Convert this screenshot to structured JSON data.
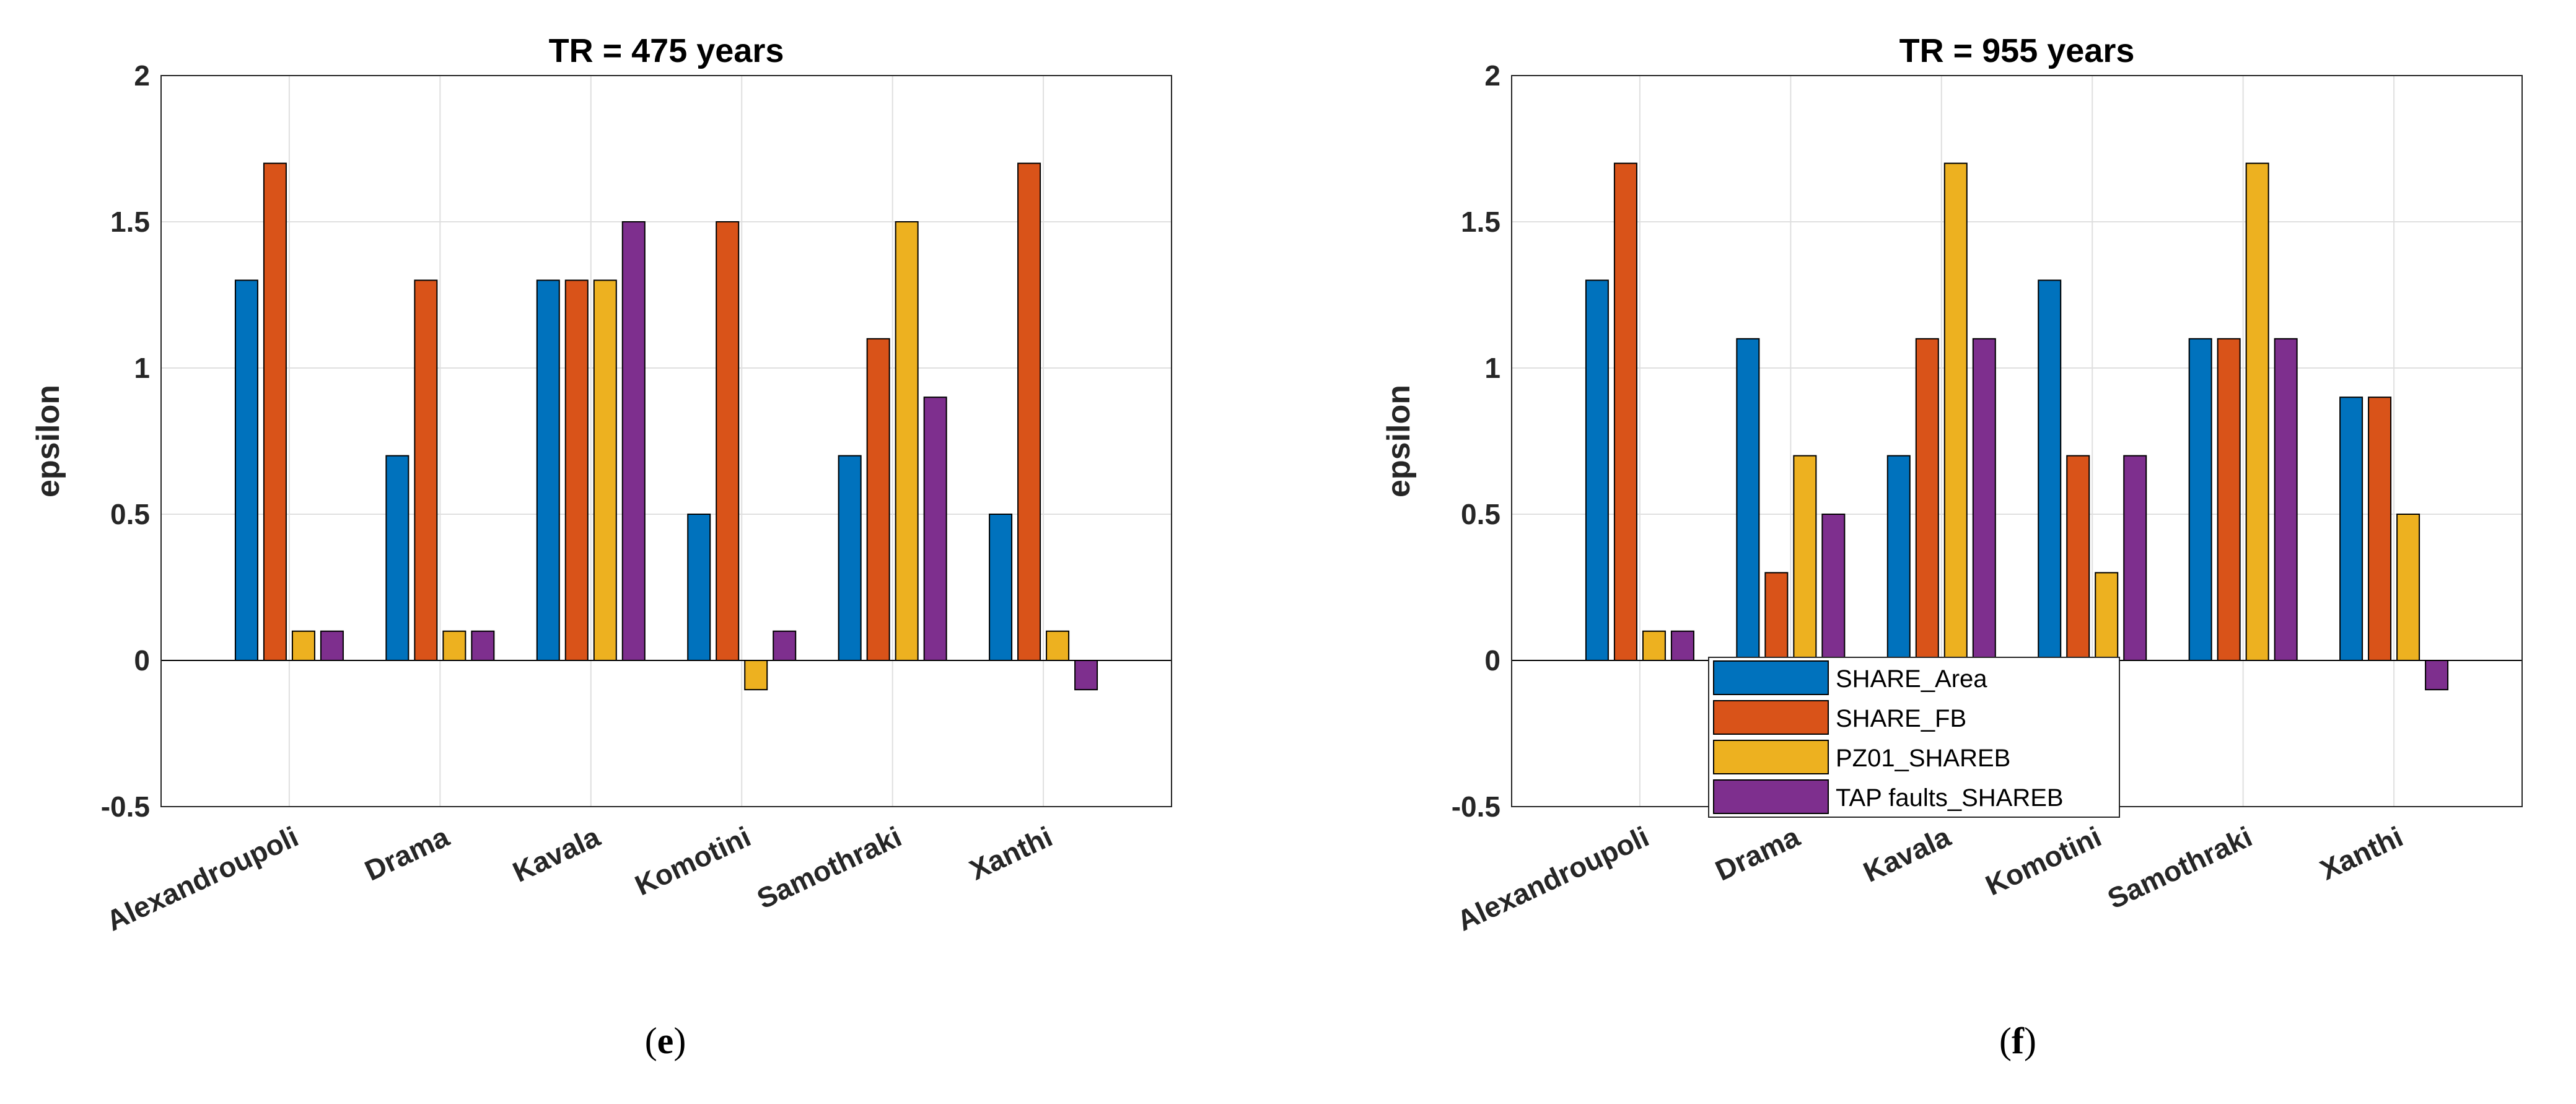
{
  "chart_data": [
    {
      "type": "bar",
      "panel": "e",
      "caption_open": "(",
      "caption_letter": "e",
      "caption_close": ")",
      "title": "TR = 475 years",
      "xlabel": "",
      "ylabel": "epsilon",
      "ylim": [
        -0.5,
        2
      ],
      "yticks": [
        -0.5,
        0,
        0.5,
        1,
        1.5,
        2
      ],
      "ytick_labels": [
        "-0.5",
        "0",
        "0.5",
        "1",
        "1.5",
        "2"
      ],
      "grid": true,
      "categories": [
        "Alexandroupoli",
        "Drama",
        "Kavala",
        "Komotini",
        "Samothraki",
        "Xanthi"
      ],
      "series": [
        {
          "name": "SHARE_Area",
          "color": "#0072BD",
          "values": [
            1.3,
            0.7,
            1.3,
            0.5,
            0.7,
            0.5
          ]
        },
        {
          "name": "SHARE_FB",
          "color": "#D95319",
          "values": [
            1.7,
            1.3,
            1.3,
            1.5,
            1.1,
            1.7
          ]
        },
        {
          "name": "PZ01_SHAREB",
          "color": "#EDB120",
          "values": [
            0.1,
            0.1,
            1.3,
            -0.1,
            1.5,
            0.1
          ]
        },
        {
          "name": "TAP faults_SHAREB",
          "color": "#7E2F8E",
          "values": [
            0.1,
            0.1,
            1.5,
            0.1,
            0.9,
            -0.1
          ]
        }
      ],
      "legend": null
    },
    {
      "type": "bar",
      "panel": "f",
      "caption_open": "(",
      "caption_letter": "f",
      "caption_close": ")",
      "title": "TR = 955 years",
      "xlabel": "",
      "ylabel": "epsilon",
      "ylim": [
        -0.5,
        2
      ],
      "yticks": [
        -0.5,
        0,
        0.5,
        1,
        1.5,
        2
      ],
      "ytick_labels": [
        "-0.5",
        "0",
        "0.5",
        "1",
        "1.5",
        "2"
      ],
      "grid": true,
      "categories": [
        "Alexandroupoli",
        "Drama",
        "Kavala",
        "Komotini",
        "Samothraki",
        "Xanthi"
      ],
      "series": [
        {
          "name": "SHARE_Area",
          "color": "#0072BD",
          "values": [
            1.3,
            1.1,
            0.7,
            1.3,
            1.1,
            0.9
          ]
        },
        {
          "name": "SHARE_FB",
          "color": "#D95319",
          "values": [
            1.7,
            0.3,
            1.1,
            0.7,
            1.1,
            0.9
          ]
        },
        {
          "name": "PZ01_SHAREB",
          "color": "#EDB120",
          "values": [
            0.1,
            0.7,
            1.7,
            0.3,
            1.7,
            0.5
          ]
        },
        {
          "name": "TAP faults_SHAREB",
          "color": "#7E2F8E",
          "values": [
            0.1,
            0.5,
            1.1,
            0.7,
            1.1,
            -0.1
          ]
        }
      ],
      "legend": "bottom-center"
    }
  ]
}
